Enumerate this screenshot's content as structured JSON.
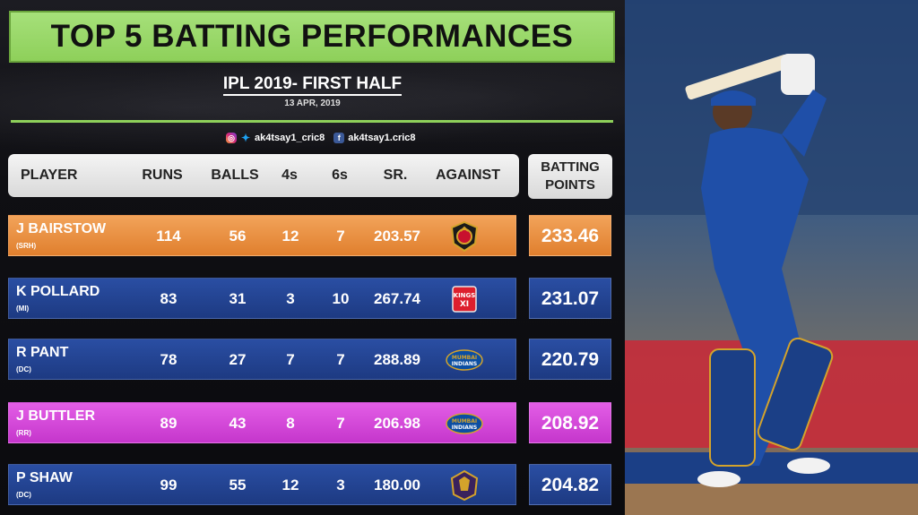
{
  "title": "TOP 5 BATTING PERFORMANCES",
  "subtitle": "IPL 2019- FIRST HALF",
  "date": "13 APR, 2019",
  "socials": {
    "instagram_twitter_handle": "ak4tsay1_cric8",
    "facebook_handle": "ak4tsay1.cric8"
  },
  "columns": {
    "player": "PLAYER",
    "runs": "RUNS",
    "balls": "BALLS",
    "fours": "4s",
    "sixes": "6s",
    "sr": "SR.",
    "against": "AGAINST",
    "points_line1": "BATTING",
    "points_line2": "POINTS"
  },
  "rows": [
    {
      "name": "J BAIRSTOW",
      "team": "(SRH)",
      "runs": "114",
      "balls": "56",
      "fours": "12",
      "sixes": "7",
      "sr": "203.57",
      "against": "rcb-logo",
      "points": "233.46",
      "color": "#e8913f"
    },
    {
      "name": "K POLLARD",
      "team": "(MI)",
      "runs": "83",
      "balls": "31",
      "fours": "3",
      "sixes": "10",
      "sr": "267.74",
      "against": "kxip-logo",
      "points": "231.07",
      "color": "#2444a0"
    },
    {
      "name": "R PANT",
      "team": "(DC)",
      "runs": "78",
      "balls": "27",
      "fours": "7",
      "sixes": "7",
      "sr": "288.89",
      "against": "mi-logo",
      "points": "220.79",
      "color": "#2444a0"
    },
    {
      "name": "J BUTTLER",
      "team": "(RR)",
      "runs": "89",
      "balls": "43",
      "fours": "8",
      "sixes": "7",
      "sr": "206.98",
      "against": "mi-logo",
      "points": "208.92",
      "color": "#d445d8"
    },
    {
      "name": "P SHAW",
      "team": "(DC)",
      "runs": "99",
      "balls": "55",
      "fours": "12",
      "sixes": "3",
      "sr": "180.00",
      "against": "kkr-logo",
      "points": "204.82",
      "color": "#2444a0"
    }
  ],
  "logo_text": {
    "kxip_line1": "KINGS",
    "kxip_line2": "XI",
    "mi_line1": "MUMBAI",
    "mi_line2": "INDIANS"
  }
}
